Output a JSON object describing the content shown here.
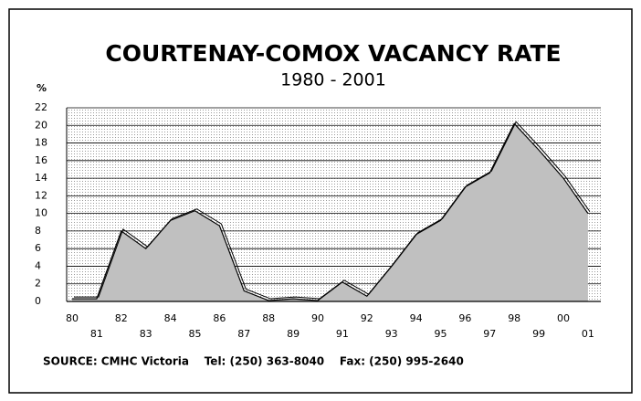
{
  "chart_data": {
    "type": "area",
    "title": "COURTENAY-COMOX VACANCY RATE",
    "subtitle": "1980 - 2001",
    "y_label": "%",
    "source": "SOURCE: CMHC Victoria    Tel: (250) 363-8040    Fax: (250) 995-2640",
    "categories": [
      "80",
      "81",
      "82",
      "83",
      "84",
      "85",
      "86",
      "87",
      "88",
      "89",
      "90",
      "91",
      "92",
      "93",
      "94",
      "95",
      "96",
      "97",
      "98",
      "99",
      "00",
      "01"
    ],
    "values": [
      0.3,
      0.3,
      8,
      6,
      9.2,
      10.3,
      8.6,
      1.2,
      0.1,
      0.3,
      0.1,
      2.2,
      0.6,
      4,
      7.6,
      9.2,
      13,
      14.6,
      20.2,
      17.2,
      14,
      10
    ],
    "color": "#c0c0c0",
    "ylim": [
      0,
      22
    ],
    "yticks": [
      0,
      2,
      4,
      6,
      8,
      10,
      12,
      14,
      16,
      18,
      20,
      22
    ],
    "grid": true
  }
}
